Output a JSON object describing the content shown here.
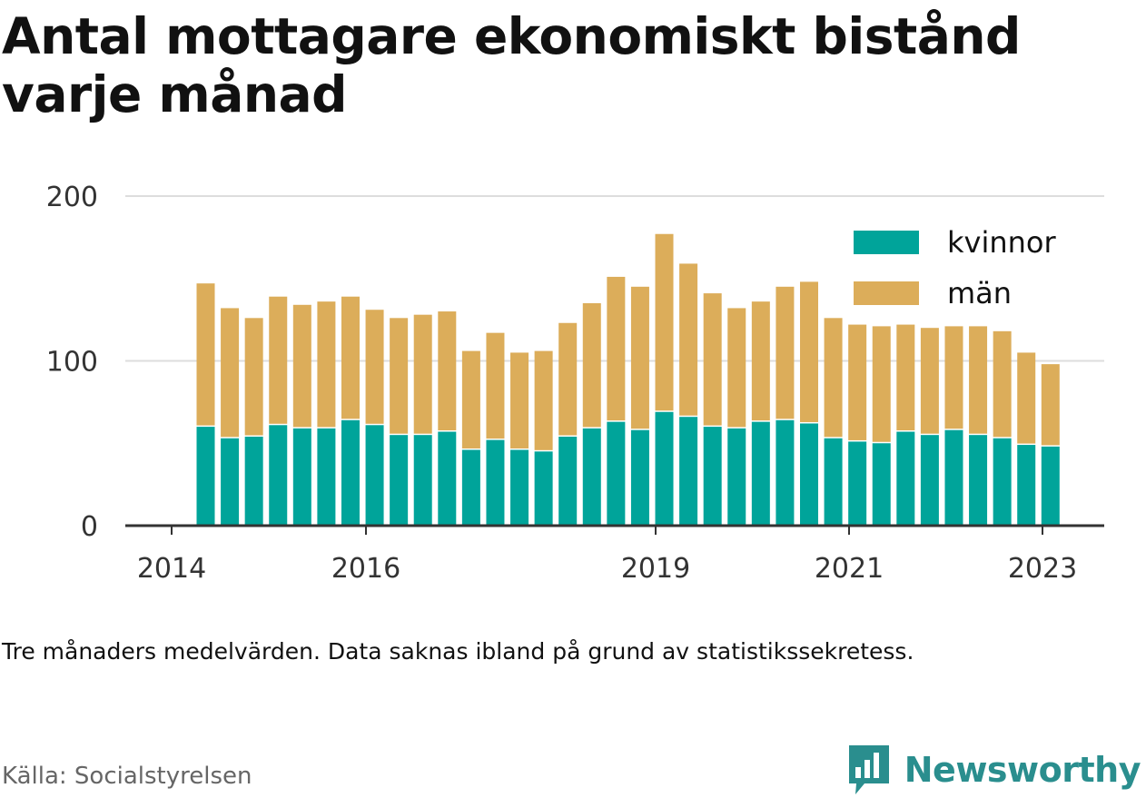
{
  "title": "Antal mottagare ekonomiskt bistånd varje månad",
  "caption": "Tre månaders medelvärden. Data saknas ibland på grund av statistikssekretess.",
  "source": "Källa: Socialstyrelsen",
  "brand": {
    "name": "Newsworthy",
    "icon": "bar-chart-logo-icon"
  },
  "colors": {
    "kvinnor": "#00a49a",
    "man": "#dcad5a",
    "grid": "#dddddd",
    "axis": "#333333",
    "brand": "#2a8e8e"
  },
  "chart_data": {
    "type": "bar",
    "stacked": true,
    "ylim": [
      0,
      200
    ],
    "yticks": [
      0,
      100,
      200
    ],
    "grid": true,
    "legend_position": "top-right",
    "xtick_labels": [
      "2014",
      "2016",
      "2019",
      "2021",
      "2023"
    ],
    "series": [
      {
        "name": "kvinnor",
        "values": [
          60,
          53,
          54,
          61,
          59,
          59,
          64,
          61,
          55,
          55,
          57,
          46,
          52,
          46,
          45,
          54,
          59,
          63,
          58,
          69,
          66,
          60,
          59,
          63,
          64,
          62,
          53,
          51,
          50,
          57,
          55,
          58,
          55,
          53,
          49,
          48
        ]
      },
      {
        "name": "män",
        "values": [
          87,
          79,
          72,
          78,
          75,
          77,
          75,
          70,
          71,
          73,
          73,
          60,
          65,
          59,
          61,
          69,
          76,
          88,
          87,
          108,
          93,
          81,
          73,
          73,
          81,
          86,
          73,
          71,
          71,
          65,
          65,
          63,
          66,
          65,
          56,
          50
        ]
      }
    ]
  }
}
